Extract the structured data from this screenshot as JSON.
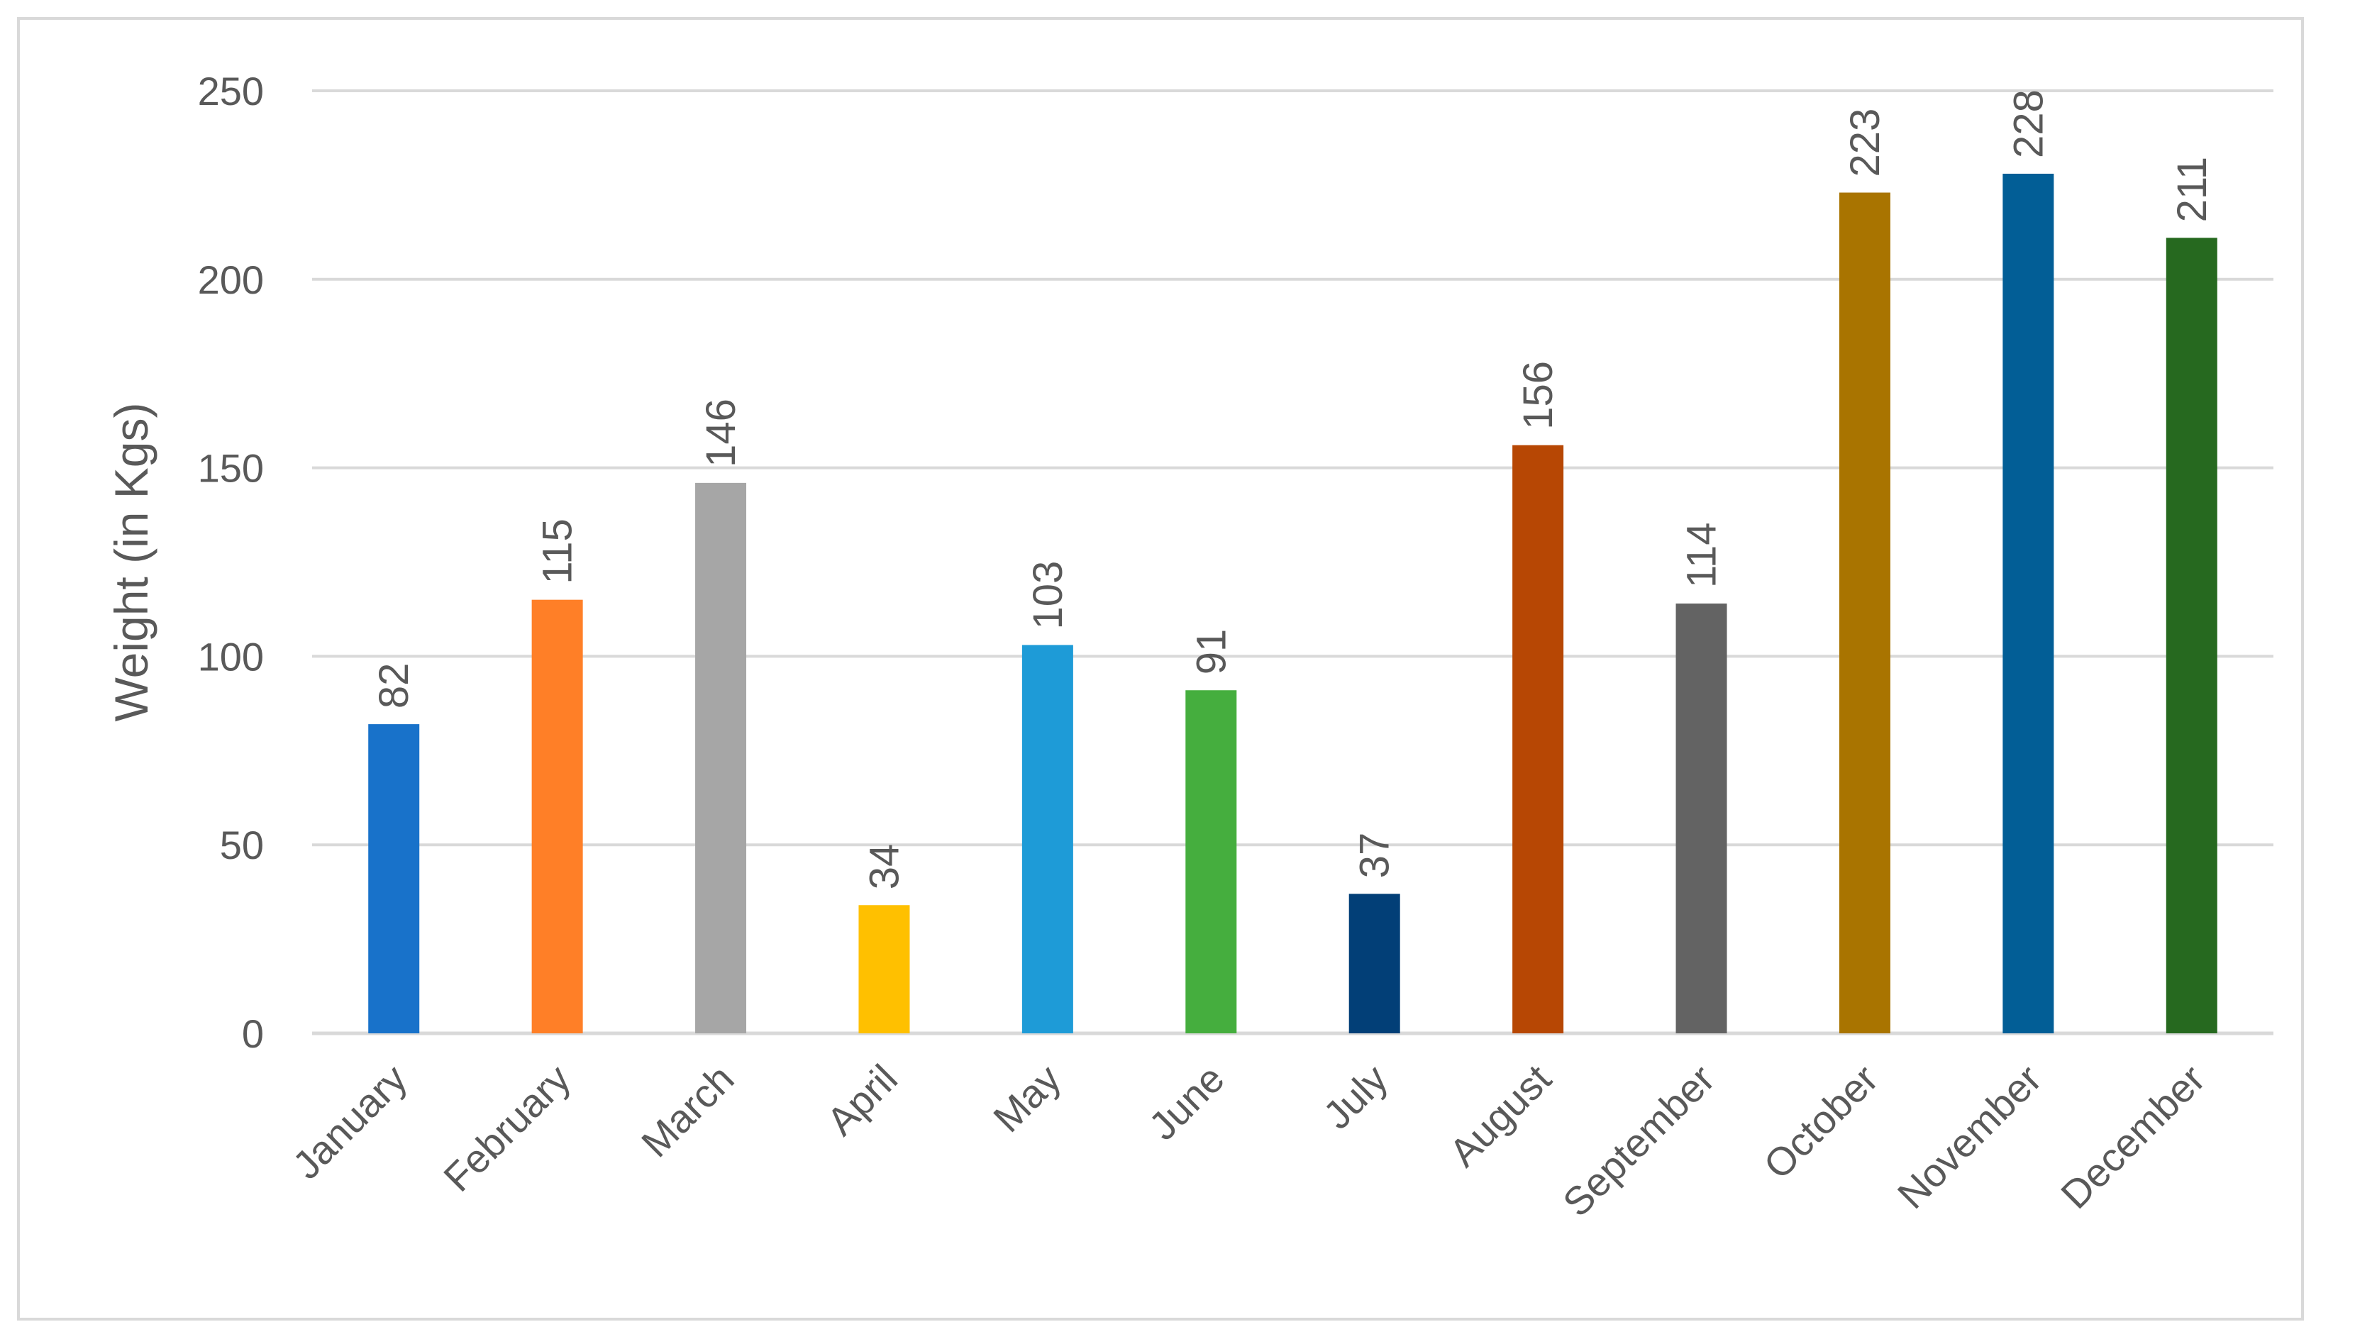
{
  "chart_data": {
    "type": "bar",
    "title": "",
    "xlabel": "",
    "ylabel": "Weight (in Kgs)",
    "ylim": [
      0,
      250
    ],
    "yticks": [
      0,
      50,
      100,
      150,
      200,
      250
    ],
    "grid": true,
    "legend": "none",
    "categories": [
      "January",
      "February",
      "March",
      "April",
      "May",
      "June",
      "July",
      "August",
      "September",
      "October",
      "November",
      "December"
    ],
    "values": [
      82,
      115,
      146,
      34,
      103,
      91,
      37,
      156,
      114,
      223,
      228,
      211
    ],
    "colors": [
      "#1872CA",
      "#FF7F27",
      "#A6A6A6",
      "#FFC000",
      "#1E9BD7",
      "#45AE3E",
      "#023F77",
      "#B74704",
      "#636363",
      "#A97400",
      "#025E96",
      "#26691F"
    ],
    "gridline_color": "#D9D9D9",
    "text_color": "#595959"
  }
}
